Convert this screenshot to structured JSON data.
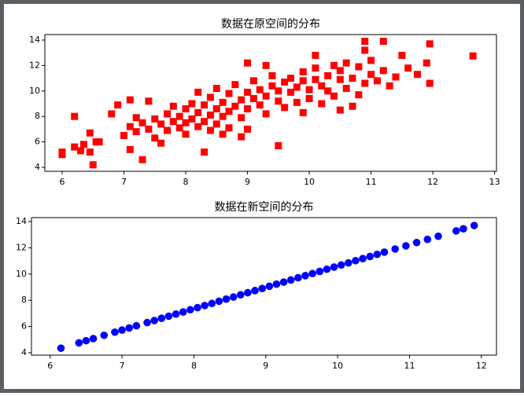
{
  "chart_data": [
    {
      "type": "scatter",
      "title": "数据在原空间的分布",
      "marker": "square",
      "color": "#ff0000",
      "xlim": [
        5.72,
        13.03
      ],
      "ylim": [
        3.69,
        14.43
      ],
      "xticks": [
        6,
        7,
        8,
        9,
        10,
        11,
        12,
        13
      ],
      "yticks": [
        4,
        6,
        8,
        10,
        12,
        14
      ],
      "x": [
        6.0,
        6.0,
        6.2,
        6.2,
        6.3,
        6.35,
        6.45,
        6.45,
        6.5,
        6.55,
        6.6,
        6.8,
        6.9,
        7.1,
        7.3,
        7.1,
        8.3,
        10.9,
        11.2,
        11.95,
        11.9,
        11.95,
        12.65,
        11.5,
        11.6,
        11.75,
        9.5,
        9.0,
        10.1,
        10.9,
        7.0,
        7.1,
        7.2,
        7.3,
        7.4,
        7.5,
        7.5,
        7.6,
        7.7,
        7.7,
        7.8,
        7.8,
        7.9,
        7.9,
        8.0,
        8.0,
        8.0,
        8.1,
        8.1,
        8.2,
        8.2,
        8.3,
        8.3,
        8.4,
        8.4,
        8.4,
        8.5,
        8.5,
        8.5,
        8.6,
        8.6,
        8.7,
        8.7,
        8.7,
        8.8,
        8.8,
        8.9,
        8.9,
        9.0,
        9.0,
        9.0,
        9.1,
        9.1,
        9.2,
        9.2,
        9.3,
        9.3,
        9.4,
        9.4,
        9.5,
        9.5,
        9.6,
        9.6,
        9.7,
        9.7,
        9.8,
        9.8,
        9.9,
        9.9,
        10.0,
        10.0,
        10.1,
        10.1,
        10.2,
        10.2,
        10.3,
        10.3,
        10.4,
        10.4,
        10.5,
        10.5,
        10.6,
        10.6,
        10.7,
        10.8,
        10.8,
        10.9,
        11.0,
        11.0,
        11.1,
        11.2,
        11.3,
        11.4,
        8.9,
        8.6,
        7.6,
        7.4,
        9.3,
        10.5,
        10.7,
        9.9,
        8.2,
        7.2
      ],
      "values": [
        5.2,
        5.0,
        5.6,
        8.0,
        5.3,
        5.8,
        6.7,
        5.2,
        4.2,
        6.0,
        6.0,
        8.2,
        8.9,
        9.3,
        4.6,
        5.4,
        5.2,
        13.9,
        13.9,
        13.7,
        12.2,
        10.6,
        12.75,
        12.8,
        11.8,
        11.3,
        5.7,
        12.2,
        12.8,
        13.2,
        6.5,
        7.2,
        6.8,
        7.5,
        7.0,
        7.8,
        6.3,
        7.4,
        8.2,
        6.9,
        7.6,
        8.8,
        7.1,
        8.0,
        7.5,
        8.6,
        6.6,
        9.0,
        7.8,
        8.3,
        7.2,
        8.9,
        7.6,
        9.5,
        8.1,
        6.9,
        8.6,
        7.4,
        10.2,
        9.1,
        8.0,
        8.4,
        9.8,
        7.1,
        8.8,
        10.5,
        9.3,
        7.9,
        8.6,
        9.9,
        7.0,
        9.4,
        10.8,
        8.9,
        10.1,
        9.6,
        8.2,
        10.4,
        11.2,
        9.2,
        10.0,
        10.7,
        8.7,
        9.9,
        11.0,
        10.3,
        9.1,
        10.8,
        11.5,
        10.1,
        9.4,
        10.9,
        11.8,
        10.4,
        9.0,
        11.2,
        10.0,
        12.0,
        9.6,
        10.9,
        11.6,
        10.2,
        12.2,
        11.0,
        9.7,
        11.9,
        10.6,
        11.3,
        12.4,
        10.8,
        11.6,
        10.4,
        11.1,
        6.4,
        6.6,
        5.9,
        9.2,
        12.0,
        8.5,
        8.8,
        8.3,
        9.9,
        7.9
      ]
    },
    {
      "type": "scatter",
      "title": "数据在新空间的分布",
      "marker": "circle",
      "color": "#0000ff",
      "xlim": [
        5.74,
        12.21
      ],
      "ylim": [
        3.82,
        14.3
      ],
      "xticks": [
        6,
        7,
        8,
        9,
        10,
        11,
        12
      ],
      "yticks": [
        4,
        6,
        8,
        10,
        12,
        14
      ],
      "x": [
        6.15,
        6.4,
        6.5,
        6.6,
        6.75,
        6.9,
        7.0,
        7.1,
        7.2,
        7.35,
        7.45,
        7.55,
        7.65,
        7.75,
        7.85,
        7.95,
        8.05,
        8.15,
        8.25,
        8.35,
        8.45,
        8.55,
        8.65,
        8.75,
        8.85,
        8.95,
        9.05,
        9.15,
        9.25,
        9.35,
        9.45,
        9.55,
        9.65,
        9.75,
        9.85,
        9.95,
        10.05,
        10.15,
        10.25,
        10.35,
        10.45,
        10.55,
        10.65,
        10.8,
        10.95,
        11.1,
        11.25,
        11.4,
        11.65,
        11.75,
        11.9
      ],
      "values": [
        4.35,
        4.76,
        4.92,
        5.08,
        5.33,
        5.57,
        5.73,
        5.89,
        6.06,
        6.3,
        6.46,
        6.63,
        6.79,
        6.95,
        7.11,
        7.28,
        7.44,
        7.6,
        7.76,
        7.93,
        8.09,
        8.25,
        8.42,
        8.58,
        8.74,
        8.9,
        9.07,
        9.23,
        9.39,
        9.55,
        9.72,
        9.88,
        10.04,
        10.2,
        10.37,
        10.53,
        10.69,
        10.85,
        11.02,
        11.18,
        11.34,
        11.5,
        11.67,
        11.91,
        12.15,
        12.4,
        12.64,
        12.88,
        13.29,
        13.45,
        13.7
      ]
    }
  ]
}
